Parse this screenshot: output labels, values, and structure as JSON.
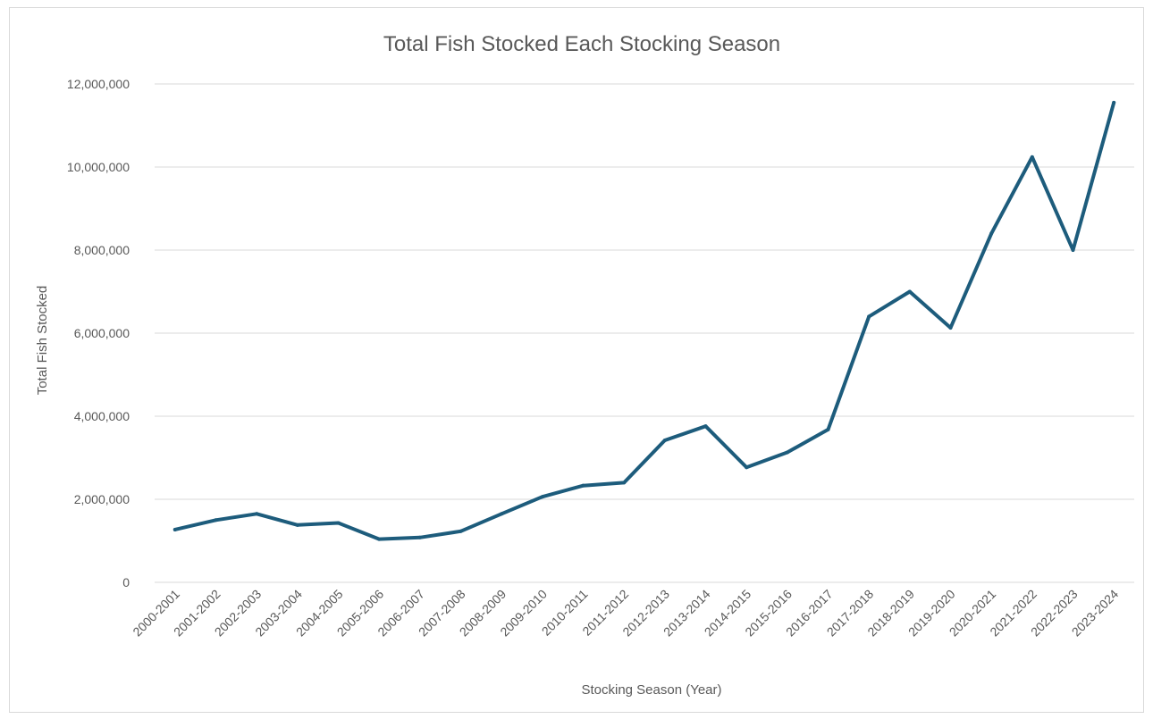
{
  "chart_data": {
    "type": "line",
    "title": "Total Fish Stocked Each Stocking Season",
    "xlabel": "Stocking Season (Year)",
    "ylabel": "Total Fish Stocked",
    "ylim": [
      0,
      12000000
    ],
    "yticks": [
      "0",
      "2,000,000",
      "4,000,000",
      "6,000,000",
      "8,000,000",
      "10,000,000",
      "12,000,000"
    ],
    "ytick_values": [
      0,
      2000000,
      4000000,
      6000000,
      8000000,
      10000000,
      12000000
    ],
    "grid": true,
    "legend": "none",
    "categories": [
      "2000-2001",
      "2001-2002",
      "2002-2003",
      "2003-2004",
      "2004-2005",
      "2005-2006",
      "2006-2007",
      "2007-2008",
      "2008-2009",
      "2009-2010",
      "2010-2011",
      "2011-2012",
      "2012-2013",
      "2013-2014",
      "2014-2015",
      "2015-2016",
      "2016-2017",
      "2017-2018",
      "2018-2019",
      "2019-2020",
      "2020-2021",
      "2021-2022",
      "2022-2023",
      "2023-2024"
    ],
    "series": [
      {
        "color": "#1d5c7c",
        "values": [
          1270000,
          1500000,
          1650000,
          1380000,
          1430000,
          1040000,
          1080000,
          1230000,
          1650000,
          2060000,
          2330000,
          2400000,
          3420000,
          3760000,
          2770000,
          3130000,
          3680000,
          6400000,
          7000000,
          6130000,
          8400000,
          10240000,
          8000000,
          11550000
        ]
      }
    ]
  }
}
